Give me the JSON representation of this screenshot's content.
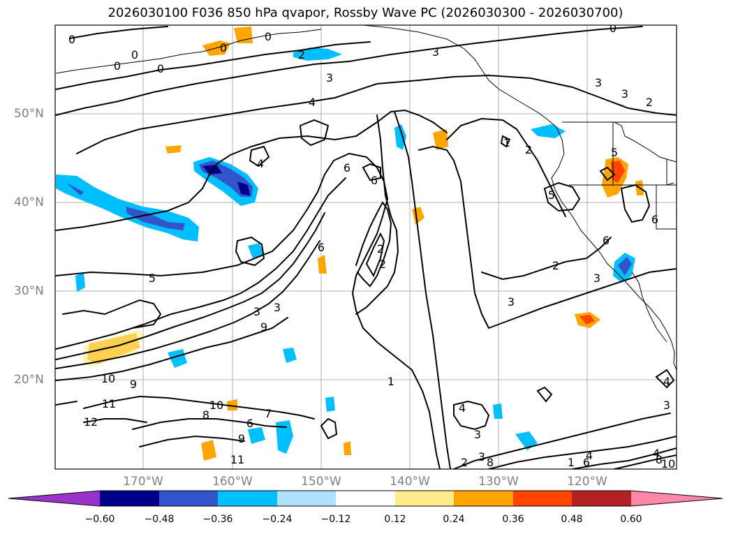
{
  "title": "2026030100 F036 850 hPa qvapor, Rossby Wave PC (2026030300 - 2026030700)",
  "latitude_labels": [
    "50°N",
    "40°N",
    "30°N",
    "20°N"
  ],
  "longitude_labels": [
    "170°W",
    "160°W",
    "150°W",
    "140°W",
    "130°W",
    "120°W"
  ],
  "colorbar": {
    "tick_labels": [
      "−0.60",
      "−0.48",
      "−0.36",
      "−0.24",
      "−0.12",
      "0.12",
      "0.24",
      "0.36",
      "0.48",
      "0.60"
    ],
    "colors": [
      "#9933cc",
      "#00008b",
      "#3355cc",
      "#00bfff",
      "#b0e2ff",
      "#ffffff",
      "#ffec8b",
      "#ffa500",
      "#ff4500",
      "#b22222",
      "#ff88aa"
    ]
  },
  "contour_labels": [
    "0",
    "0",
    "0",
    "0",
    "0",
    "0",
    "0",
    "2",
    "3",
    "3",
    "3",
    "4",
    "3",
    "3",
    "2",
    "1",
    "2",
    "4",
    "6",
    "6",
    "6",
    "2",
    "2",
    "5",
    "5",
    "6",
    "6",
    "2",
    "3",
    "3",
    "5",
    "3",
    "9",
    "10",
    "9",
    "11",
    "12",
    "10",
    "8",
    "7",
    "6",
    "9",
    "11",
    "4",
    "3",
    "2",
    "3",
    "8",
    "4",
    "4",
    "4",
    "3",
    "10",
    "8",
    "1",
    "1",
    "6"
  ]
}
